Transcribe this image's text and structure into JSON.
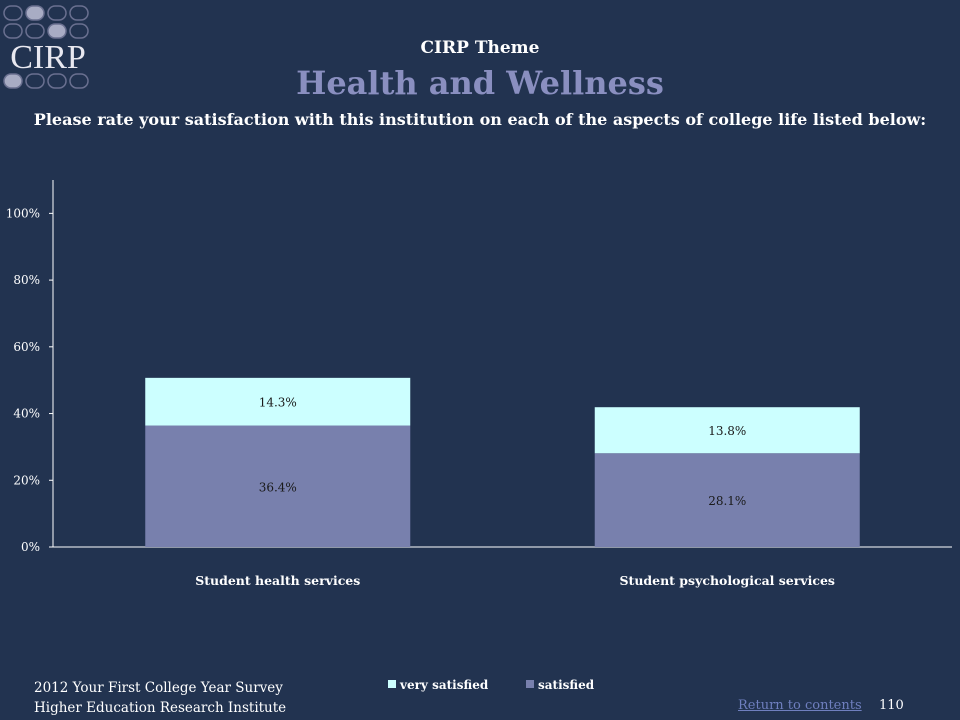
{
  "logo": {
    "text": "CIRP"
  },
  "header": {
    "theme_label": "CIRP Theme",
    "theme_title": "Health and Wellness",
    "question": "Please rate your satisfaction with this institution on each of the aspects of college life listed below:"
  },
  "chart_data": {
    "type": "bar",
    "stacked": true,
    "categories": [
      "Student health services",
      "Student psychological  services"
    ],
    "series": [
      {
        "name": "satisfied",
        "values": [
          36.4,
          28.1
        ],
        "labels": [
          "36.4%",
          "28.1%"
        ],
        "color": "#7880ad"
      },
      {
        "name": "very satisfied",
        "values": [
          14.3,
          13.8
        ],
        "labels": [
          "14.3%",
          "13.8%"
        ],
        "color": "#ccffff"
      }
    ],
    "ylim": [
      0,
      110
    ],
    "yticks": [
      0,
      20,
      40,
      60,
      80,
      100
    ],
    "ytick_labels": [
      "0%",
      "20%",
      "40%",
      "60%",
      "80%",
      "100%"
    ],
    "legend": [
      "very satisfied",
      "satisfied"
    ],
    "legend_placement": "bottom",
    "grid": false
  },
  "footer": {
    "survey": "2012 Your First College Year Survey",
    "institute": "Higher Education Research Institute",
    "return_link": "Return to contents",
    "page_number": "110"
  },
  "colors": {
    "background": "#223350",
    "title_accent": "#8a8fc0",
    "link": "#6f7fbf"
  }
}
